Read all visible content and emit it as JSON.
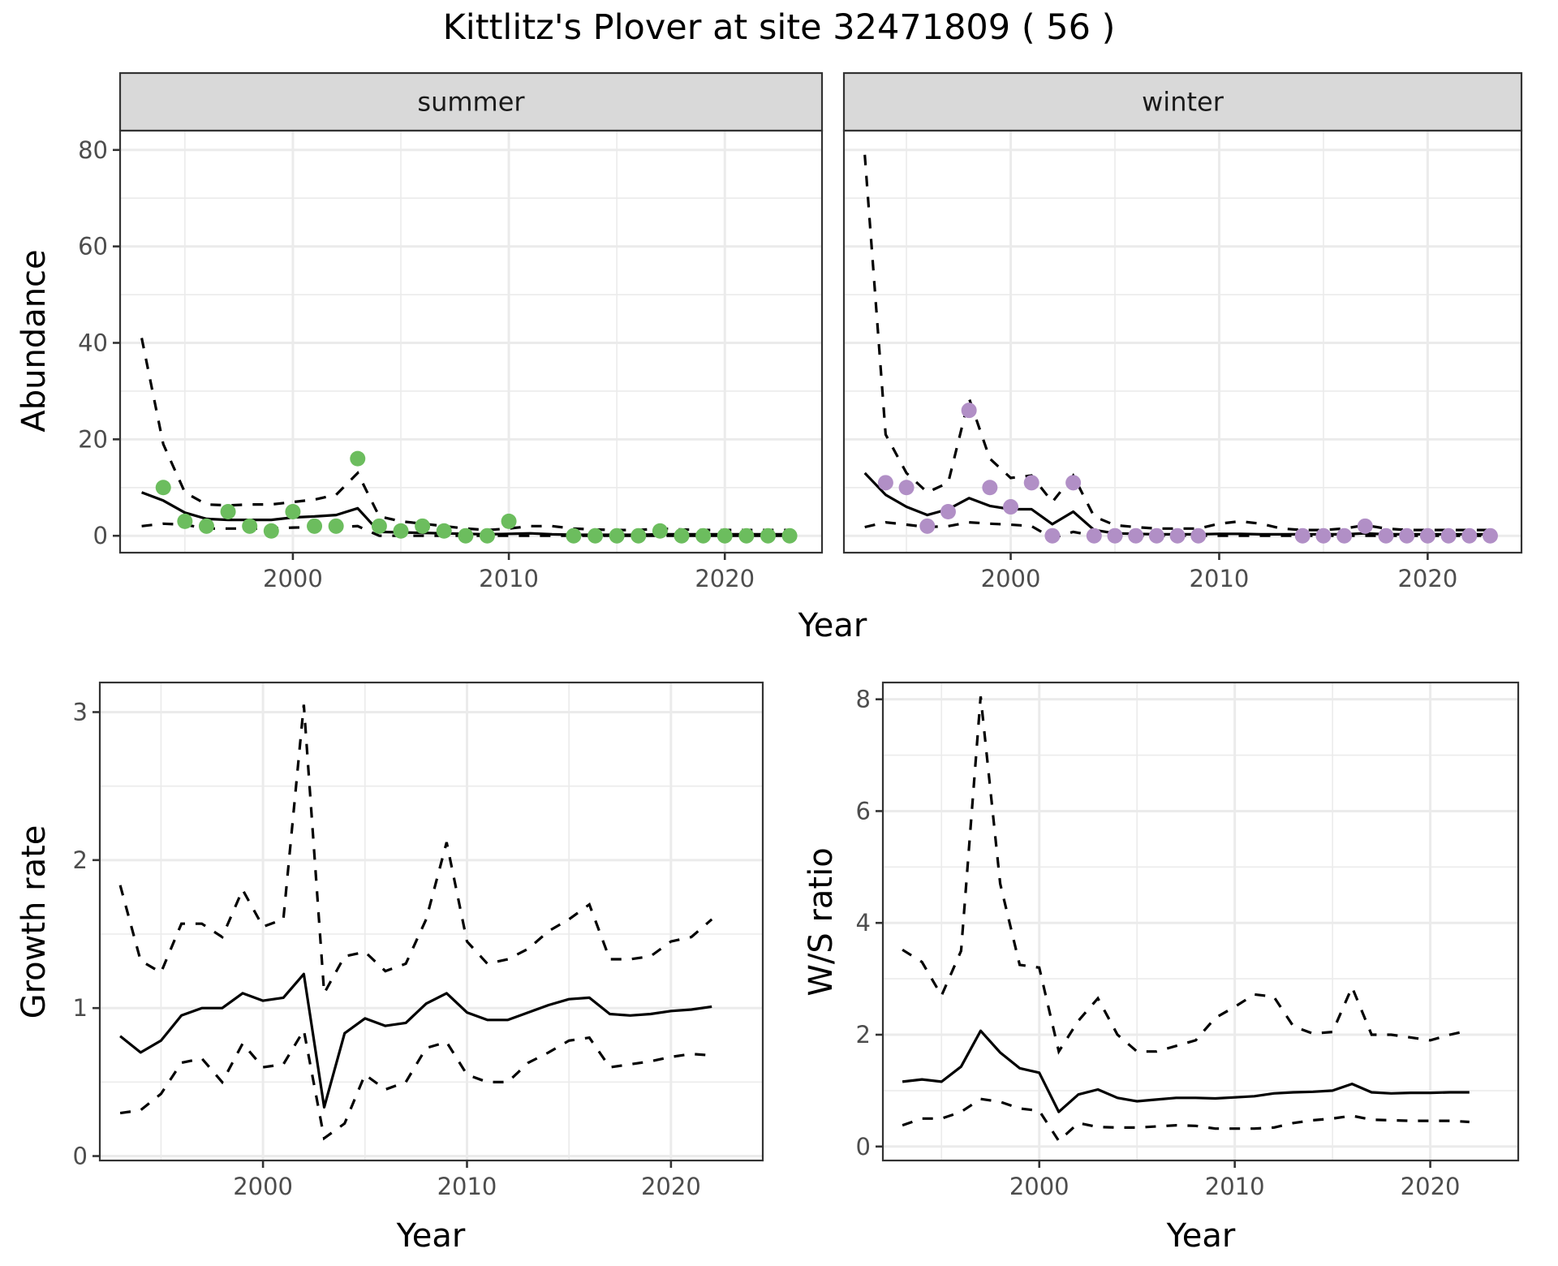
{
  "chart_data": [
    {
      "type": "line",
      "panel": "summer",
      "strip_label": "summer",
      "xlabel": "Year",
      "ylabel": "Abundance",
      "ylim": [
        -3.5,
        84
      ],
      "xlim": [
        1992,
        2024.5
      ],
      "xticks": [
        2000,
        2010,
        2020
      ],
      "yticks": [
        0,
        20,
        40,
        60,
        80
      ],
      "grid": true,
      "point_color": "#6cbd5e",
      "points": {
        "x": [
          1994,
          1995,
          1996,
          1997,
          1998,
          1999,
          2000,
          2001,
          2002,
          2003,
          2004,
          2005,
          2006,
          2007,
          2008,
          2009,
          2010,
          2013,
          2014,
          2015,
          2016,
          2017,
          2018,
          2019,
          2020,
          2021,
          2022,
          2023
        ],
        "y": [
          10,
          3,
          2,
          5,
          2,
          1,
          5,
          2,
          2,
          16,
          2,
          1,
          2,
          1,
          0,
          0,
          3,
          0,
          0,
          0,
          0,
          1,
          0,
          0,
          0,
          0,
          0,
          0
        ]
      },
      "series": [
        {
          "name": "mean",
          "style": "solid",
          "x": [
            1993,
            1994,
            1995,
            1996,
            1997,
            1998,
            1999,
            2000,
            2001,
            2002,
            2003,
            2004,
            2005,
            2006,
            2007,
            2008,
            2009,
            2010,
            2011,
            2012,
            2013,
            2014,
            2015,
            2016,
            2017,
            2018,
            2019,
            2020,
            2021,
            2022,
            2023
          ],
          "y": [
            9,
            7.3,
            4.8,
            3.5,
            3.3,
            3.3,
            3.3,
            3.8,
            4,
            4.3,
            5.7,
            0.8,
            0.7,
            0.6,
            0.5,
            0.4,
            0.3,
            0.4,
            0.5,
            0.3,
            0.2,
            0.2,
            0.2,
            0.2,
            0.3,
            0.3,
            0.3,
            0.3,
            0.3,
            0.3,
            0.3
          ]
        },
        {
          "name": "upper",
          "style": "dashed",
          "x": [
            1993,
            1994,
            1995,
            1996,
            1997,
            1998,
            1999,
            2000,
            2001,
            2002,
            2003,
            2004,
            2005,
            2006,
            2007,
            2008,
            2009,
            2010,
            2011,
            2012,
            2013,
            2014,
            2015,
            2016,
            2017,
            2018,
            2019,
            2020,
            2021,
            2022,
            2023
          ],
          "y": [
            41,
            19,
            9,
            6.5,
            6.3,
            6.5,
            6.5,
            7,
            7.5,
            8.5,
            13,
            4,
            3,
            2.5,
            2,
            1.5,
            1.2,
            1.5,
            2,
            2,
            1.5,
            1.3,
            1.2,
            1.2,
            1.5,
            1.3,
            1.2,
            1.2,
            1.2,
            1.2,
            1.2
          ]
        },
        {
          "name": "lower",
          "style": "dashed",
          "x": [
            1993,
            1994,
            1995,
            1996,
            1997,
            1998,
            1999,
            2000,
            2001,
            2002,
            2003,
            2004,
            2005,
            2006,
            2007,
            2008,
            2009,
            2010,
            2011,
            2012,
            2013,
            2014,
            2015,
            2016,
            2017,
            2018,
            2019,
            2020,
            2021,
            2022,
            2023
          ],
          "y": [
            2,
            2.5,
            2.3,
            1.5,
            1.5,
            1.5,
            1.5,
            1.7,
            1.8,
            1.8,
            2,
            0,
            0,
            0,
            0,
            0,
            0,
            0,
            0,
            0,
            0,
            0,
            0,
            0,
            0,
            0,
            0,
            0,
            0,
            0,
            0
          ]
        }
      ]
    },
    {
      "type": "line",
      "panel": "winter",
      "strip_label": "winter",
      "xlabel": "Year",
      "ylabel": "Abundance",
      "ylim": [
        -3.5,
        84
      ],
      "xlim": [
        1992,
        2024.5
      ],
      "xticks": [
        2000,
        2010,
        2020
      ],
      "yticks": [
        0,
        20,
        40,
        60,
        80
      ],
      "grid": true,
      "point_color": "#b18fc6",
      "points": {
        "x": [
          1994,
          1995,
          1996,
          1997,
          1998,
          1999,
          2000,
          2001,
          2002,
          2003,
          2004,
          2005,
          2006,
          2007,
          2008,
          2009,
          2014,
          2015,
          2016,
          2017,
          2018,
          2019,
          2020,
          2021,
          2022,
          2023
        ],
        "y": [
          11,
          10,
          2,
          5,
          26,
          10,
          6,
          11,
          0,
          11,
          0,
          0,
          0,
          0,
          0,
          0,
          0,
          0,
          0,
          2,
          0,
          0,
          0,
          0,
          0,
          0
        ]
      },
      "series": [
        {
          "name": "mean",
          "style": "solid",
          "x": [
            1993,
            1994,
            1995,
            1996,
            1997,
            1998,
            1999,
            2000,
            2001,
            2002,
            2003,
            2004,
            2005,
            2006,
            2007,
            2008,
            2009,
            2010,
            2011,
            2012,
            2013,
            2014,
            2015,
            2016,
            2017,
            2018,
            2019,
            2020,
            2021,
            2022,
            2023
          ],
          "y": [
            13,
            8.5,
            6,
            4.3,
            5.5,
            7.8,
            6.2,
            5.5,
            5.5,
            2.4,
            5,
            1.2,
            0.5,
            0.4,
            0.3,
            0.3,
            0.3,
            0.4,
            0.4,
            0.3,
            0.3,
            0.3,
            0.3,
            0.3,
            0.5,
            0.3,
            0.3,
            0.3,
            0.3,
            0.3,
            0.3
          ]
        },
        {
          "name": "upper",
          "style": "dashed",
          "x": [
            1993,
            1994,
            1995,
            1996,
            1997,
            1998,
            1999,
            2000,
            2001,
            2002,
            2003,
            2004,
            2005,
            2006,
            2007,
            2008,
            2009,
            2010,
            2011,
            2012,
            2013,
            2014,
            2015,
            2016,
            2017,
            2018,
            2019,
            2020,
            2021,
            2022,
            2023
          ],
          "y": [
            79,
            21,
            13,
            9,
            11,
            28.5,
            16,
            12,
            12.5,
            7,
            12.5,
            4,
            2.2,
            1.8,
            1.5,
            1.5,
            1.5,
            2.5,
            3,
            2.5,
            1.5,
            1.2,
            1.2,
            1.5,
            2.2,
            1.5,
            1.2,
            1.2,
            1.2,
            1.2,
            1.2
          ]
        },
        {
          "name": "lower",
          "style": "dashed",
          "x": [
            1993,
            1994,
            1995,
            1996,
            1997,
            1998,
            1999,
            2000,
            2001,
            2002,
            2003,
            2004,
            2005,
            2006,
            2007,
            2008,
            2009,
            2010,
            2011,
            2012,
            2013,
            2014,
            2015,
            2016,
            2017,
            2018,
            2019,
            2020,
            2021,
            2022,
            2023
          ],
          "y": [
            1.8,
            2.8,
            2.3,
            1.8,
            2,
            2.8,
            2.5,
            2.3,
            2,
            -0.5,
            0.8,
            0,
            0,
            0,
            0,
            0,
            0,
            0,
            0,
            0,
            0,
            0,
            0,
            0,
            0,
            0,
            0,
            0,
            0,
            0,
            0
          ]
        }
      ]
    },
    {
      "type": "line",
      "panel": "growth",
      "xlabel": "Year",
      "ylabel": "Growth rate",
      "ylim": [
        -0.03,
        3.2
      ],
      "xlim": [
        1992,
        2024.5
      ],
      "xticks": [
        2000,
        2010,
        2020
      ],
      "yticks": [
        0,
        1,
        2,
        3
      ],
      "grid": true,
      "series": [
        {
          "name": "mean",
          "style": "solid",
          "x": [
            1993,
            1994,
            1995,
            1996,
            1997,
            1998,
            1999,
            2000,
            2001,
            2002,
            2003,
            2004,
            2005,
            2006,
            2007,
            2008,
            2009,
            2010,
            2011,
            2012,
            2013,
            2014,
            2015,
            2016,
            2017,
            2018,
            2019,
            2020,
            2021,
            2022
          ],
          "y": [
            0.81,
            0.7,
            0.78,
            0.95,
            1.0,
            1.0,
            1.1,
            1.05,
            1.07,
            1.23,
            0.33,
            0.83,
            0.93,
            0.88,
            0.9,
            1.03,
            1.1,
            0.97,
            0.92,
            0.92,
            0.97,
            1.02,
            1.06,
            1.07,
            0.96,
            0.95,
            0.96,
            0.98,
            0.99,
            1.01
          ]
        },
        {
          "name": "upper",
          "style": "dashed",
          "x": [
            1993,
            1994,
            1995,
            1996,
            1997,
            1998,
            1999,
            2000,
            2001,
            2002,
            2003,
            2004,
            2005,
            2006,
            2007,
            2008,
            2009,
            2010,
            2011,
            2012,
            2013,
            2014,
            2015,
            2016,
            2017,
            2018,
            2019,
            2020,
            2021,
            2022
          ],
          "y": [
            1.83,
            1.32,
            1.24,
            1.57,
            1.57,
            1.48,
            1.8,
            1.55,
            1.6,
            3.05,
            1.1,
            1.35,
            1.38,
            1.25,
            1.3,
            1.6,
            2.12,
            1.45,
            1.3,
            1.33,
            1.4,
            1.52,
            1.6,
            1.7,
            1.33,
            1.33,
            1.35,
            1.45,
            1.48,
            1.6
          ]
        },
        {
          "name": "lower",
          "style": "dashed",
          "x": [
            1993,
            1994,
            1995,
            1996,
            1997,
            1998,
            1999,
            2000,
            2001,
            2002,
            2003,
            2004,
            2005,
            2006,
            2007,
            2008,
            2009,
            2010,
            2011,
            2012,
            2013,
            2014,
            2015,
            2016,
            2017,
            2018,
            2019,
            2020,
            2021,
            2022
          ],
          "y": [
            0.29,
            0.31,
            0.42,
            0.63,
            0.66,
            0.5,
            0.76,
            0.6,
            0.62,
            0.85,
            0.12,
            0.22,
            0.55,
            0.45,
            0.5,
            0.73,
            0.77,
            0.55,
            0.5,
            0.5,
            0.63,
            0.7,
            0.78,
            0.8,
            0.6,
            0.62,
            0.64,
            0.67,
            0.69,
            0.68
          ]
        }
      ]
    },
    {
      "type": "line",
      "panel": "ws_ratio",
      "xlabel": "Year",
      "ylabel": "W/S ratio",
      "ylim": [
        -0.25,
        8.3
      ],
      "xlim": [
        1992,
        2024.5
      ],
      "xticks": [
        2000,
        2010,
        2020
      ],
      "yticks": [
        0,
        2,
        4,
        6,
        8
      ],
      "grid": true,
      "series": [
        {
          "name": "mean",
          "style": "solid",
          "x": [
            1993,
            1994,
            1995,
            1996,
            1997,
            1998,
            1999,
            2000,
            2001,
            2002,
            2003,
            2004,
            2005,
            2006,
            2007,
            2008,
            2009,
            2010,
            2011,
            2012,
            2013,
            2014,
            2015,
            2016,
            2017,
            2018,
            2019,
            2020,
            2021,
            2022
          ],
          "y": [
            1.16,
            1.2,
            1.16,
            1.43,
            2.07,
            1.68,
            1.4,
            1.32,
            0.62,
            0.93,
            1.02,
            0.87,
            0.81,
            0.84,
            0.87,
            0.87,
            0.86,
            0.88,
            0.9,
            0.95,
            0.97,
            0.98,
            1.0,
            1.12,
            0.97,
            0.95,
            0.96,
            0.96,
            0.97,
            0.97
          ]
        },
        {
          "name": "upper",
          "style": "dashed",
          "x": [
            1993,
            1994,
            1995,
            1996,
            1997,
            1998,
            1999,
            2000,
            2001,
            2002,
            2003,
            2004,
            2005,
            2006,
            2007,
            2008,
            2009,
            2010,
            2011,
            2012,
            2013,
            2014,
            2015,
            2016,
            2017,
            2018,
            2019,
            2020,
            2021,
            2022
          ],
          "y": [
            3.52,
            3.3,
            2.7,
            3.5,
            8.05,
            4.7,
            3.25,
            3.2,
            1.7,
            2.25,
            2.65,
            2.0,
            1.7,
            1.7,
            1.8,
            1.9,
            2.3,
            2.5,
            2.72,
            2.68,
            2.15,
            2.02,
            2.05,
            2.85,
            2.0,
            2.0,
            1.95,
            1.9,
            2.0,
            2.08
          ]
        },
        {
          "name": "lower",
          "style": "dashed",
          "x": [
            1993,
            1994,
            1995,
            1996,
            1997,
            1998,
            1999,
            2000,
            2001,
            2002,
            2003,
            2004,
            2005,
            2006,
            2007,
            2008,
            2009,
            2010,
            2011,
            2012,
            2013,
            2014,
            2015,
            2016,
            2017,
            2018,
            2019,
            2020,
            2021,
            2022
          ],
          "y": [
            0.38,
            0.5,
            0.5,
            0.62,
            0.85,
            0.8,
            0.68,
            0.64,
            0.1,
            0.42,
            0.35,
            0.34,
            0.34,
            0.36,
            0.38,
            0.37,
            0.32,
            0.32,
            0.32,
            0.34,
            0.42,
            0.47,
            0.5,
            0.55,
            0.48,
            0.47,
            0.46,
            0.46,
            0.46,
            0.44
          ]
        }
      ]
    }
  ],
  "figure": {
    "title": "Kittlitz's Plover at site 32471809 ( 56 )",
    "top_xlabel": "Year",
    "top_ylabel": "Abundance",
    "bottom_left_xlabel": "Year",
    "bottom_left_ylabel": "Growth rate",
    "bottom_right_xlabel": "Year",
    "bottom_right_ylabel": "W/S ratio"
  }
}
